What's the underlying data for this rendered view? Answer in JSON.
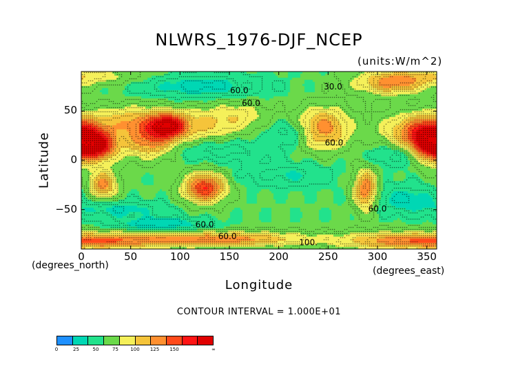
{
  "chart_data": {
    "type": "heatmap",
    "title": "NLWRS_1976-DJF_NCEP",
    "units_label": "(units:W/m^2)",
    "xlabel": "Longitude",
    "ylabel": "Latitude",
    "x_unit_left": "(degrees_north)",
    "x_unit_right": "(degrees_east)",
    "xlim": [
      0,
      360
    ],
    "ylim": [
      -90,
      90
    ],
    "x_ticks": [
      0,
      50,
      100,
      150,
      200,
      250,
      300,
      350
    ],
    "y_ticks": [
      50,
      0,
      -50
    ],
    "contour_interval_text": "CONTOUR INTERVAL = 1.000E+01",
    "contour_labels": [
      {
        "text": "60.0",
        "lon": 160,
        "lat": 68
      },
      {
        "text": "60.0",
        "lon": 172,
        "lat": 55
      },
      {
        "text": "60.0",
        "lon": 256,
        "lat": 15
      },
      {
        "text": "60.0",
        "lon": 300,
        "lat": -52
      },
      {
        "text": "60.0",
        "lon": 125,
        "lat": -68
      },
      {
        "text": "60.0",
        "lon": 148,
        "lat": -80
      },
      {
        "text": "100.",
        "lon": 230,
        "lat": -86
      },
      {
        "text": "30.0",
        "lon": 255,
        "lat": 72
      }
    ],
    "colorbar": {
      "ticks": [
        "0",
        "25",
        "50",
        "75",
        "100",
        "125",
        "150",
        "∞"
      ],
      "colors": [
        "#1e90ff",
        "#00d7b4",
        "#22e28c",
        "#6bd94a",
        "#f5f05a",
        "#f5c43a",
        "#ff9030",
        "#ff4a1a",
        "#ff1414",
        "#e00000"
      ]
    },
    "field_features": [
      {
        "lon": 15,
        "lat": 14,
        "value": 145,
        "sx": 14,
        "sy": 10
      },
      {
        "lon": 0,
        "lat": 22,
        "value": 120,
        "sx": 20,
        "sy": 14
      },
      {
        "lon": 70,
        "lat": 20,
        "value": 120,
        "sx": 18,
        "sy": 12
      },
      {
        "lon": 88,
        "lat": 35,
        "value": 150,
        "sx": 12,
        "sy": 8
      },
      {
        "lon": 55,
        "lat": 40,
        "value": 100,
        "sx": 25,
        "sy": 10
      },
      {
        "lon": 120,
        "lat": 35,
        "value": 90,
        "sx": 25,
        "sy": 12
      },
      {
        "lon": 160,
        "lat": 45,
        "value": 80,
        "sx": 20,
        "sy": 10
      },
      {
        "lon": 245,
        "lat": 32,
        "value": 120,
        "sx": 18,
        "sy": 14
      },
      {
        "lon": 340,
        "lat": 30,
        "value": 105,
        "sx": 25,
        "sy": 12
      },
      {
        "lon": 352,
        "lat": 15,
        "value": 125,
        "sx": 12,
        "sy": 12
      },
      {
        "lon": 125,
        "lat": -28,
        "value": 145,
        "sx": 14,
        "sy": 10
      },
      {
        "lon": 22,
        "lat": -25,
        "value": 115,
        "sx": 10,
        "sy": 10
      },
      {
        "lon": 288,
        "lat": -30,
        "value": 125,
        "sx": 8,
        "sy": 14
      },
      {
        "lon": 140,
        "lat": -80,
        "value": 120,
        "sx": 60,
        "sy": 5
      },
      {
        "lon": 320,
        "lat": -82,
        "value": 110,
        "sx": 40,
        "sy": 6
      },
      {
        "lon": 30,
        "lat": -82,
        "value": 105,
        "sx": 40,
        "sy": 6
      },
      {
        "lon": 0,
        "lat": 85,
        "value": 85,
        "sx": 40,
        "sy": 6
      },
      {
        "lon": 315,
        "lat": 78,
        "value": 110,
        "sx": 25,
        "sy": 8
      },
      {
        "lon": 120,
        "lat": 75,
        "value": 25,
        "sx": 40,
        "sy": 8
      },
      {
        "lon": 215,
        "lat": 28,
        "value": 30,
        "sx": 18,
        "sy": 8
      },
      {
        "lon": 140,
        "lat": 10,
        "value": 35,
        "sx": 40,
        "sy": 8
      },
      {
        "lon": 210,
        "lat": -15,
        "value": 35,
        "sx": 30,
        "sy": 8
      },
      {
        "lon": 40,
        "lat": -50,
        "value": 30,
        "sx": 30,
        "sy": 6
      },
      {
        "lon": 80,
        "lat": -65,
        "value": 20,
        "sx": 30,
        "sy": 5
      },
      {
        "lon": 330,
        "lat": -40,
        "value": 28,
        "sx": 25,
        "sy": 10
      },
      {
        "lon": 330,
        "lat": 5,
        "value": 30,
        "sx": 25,
        "sy": 8
      }
    ],
    "background_value": 55
  }
}
